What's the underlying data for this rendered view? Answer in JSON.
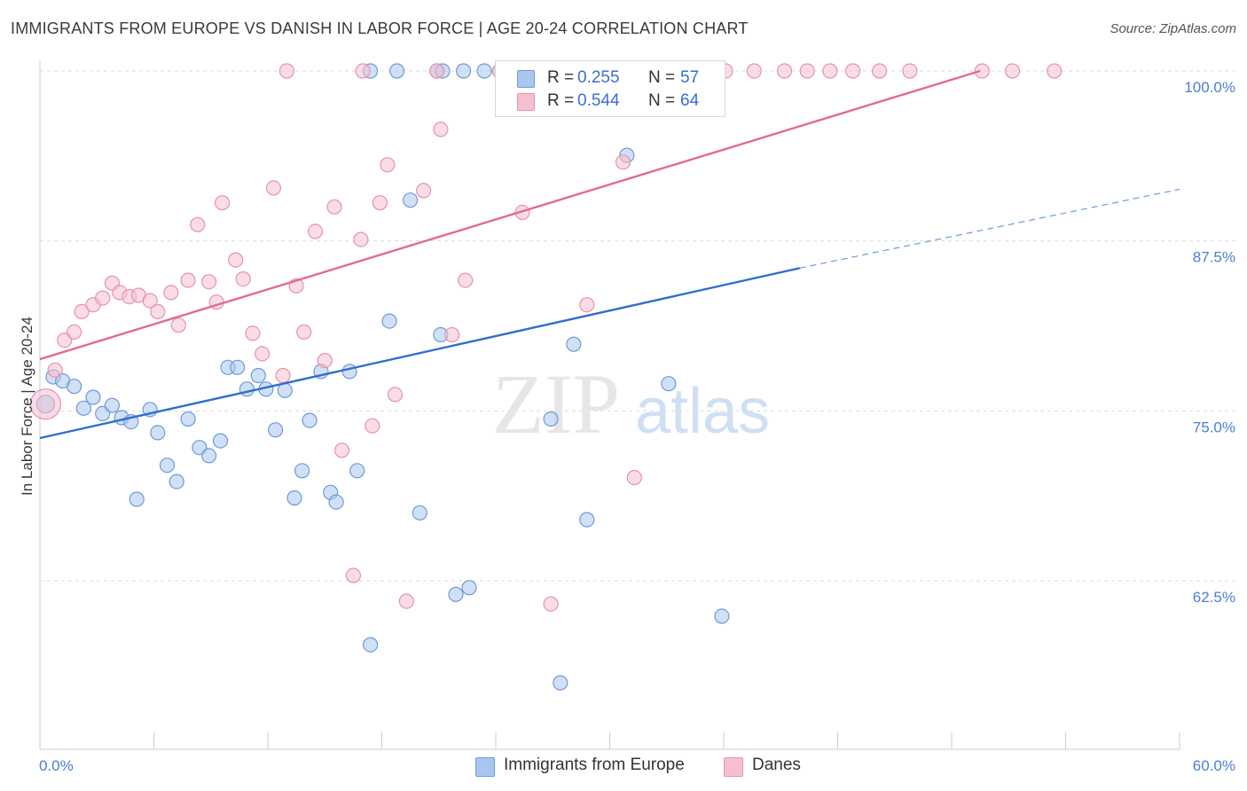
{
  "title": "IMMIGRANTS FROM EUROPE VS DANISH IN LABOR FORCE | AGE 20-24 CORRELATION CHART",
  "source": "Source: ZipAtlas.com",
  "watermark": {
    "zip": "ZIP",
    "atlas": "atlas"
  },
  "colors": {
    "blue_fill": "#a9c6ee",
    "blue_stroke": "#6f9ad6",
    "blue_line": "#2f6fcf",
    "pink_fill": "#f6bfd0",
    "pink_stroke": "#e792ae",
    "pink_line": "#e06b93",
    "tick_text": "#4a7fd6",
    "grid": "#dddddd"
  },
  "legend": {
    "rows": [
      {
        "r_label": "R =",
        "r_value": "0.255",
        "n_label": "N =",
        "n_value": "57",
        "color": "#a9c6ee"
      },
      {
        "r_label": "R =",
        "r_value": "0.544",
        "n_label": "N =",
        "n_value": "64",
        "color": "#f6bfd0"
      }
    ]
  },
  "chart_data": {
    "type": "scatter",
    "title": "IMMIGRANTS FROM EUROPE VS DANISH IN LABOR FORCE | AGE 20-24 CORRELATION CHART",
    "xlabel": "",
    "ylabel": "In Labor Force | Age 20-24",
    "xlim": [
      0,
      60
    ],
    "ylim": [
      50,
      100
    ],
    "x_tick_labels": [
      "0.0%",
      "60.0%"
    ],
    "y_tick_values": [
      62.5,
      75.0,
      87.5,
      100.0
    ],
    "y_tick_labels": [
      "62.5%",
      "75.0%",
      "87.5%",
      "100.0%"
    ],
    "grid": true,
    "legend_position": "top-center",
    "series": [
      {
        "name": "Immigrants from Europe",
        "color": "#a9c6ee",
        "trend": {
          "x0": 0,
          "y0": 73.0,
          "x1": 40,
          "y1": 85.5,
          "dash_to_x": 60,
          "dash_y": 91.3
        },
        "points": [
          [
            0.3,
            75.5
          ],
          [
            0.7,
            77.5
          ],
          [
            1.2,
            77.2
          ],
          [
            1.8,
            76.8
          ],
          [
            2.3,
            75.2
          ],
          [
            2.8,
            76.0
          ],
          [
            3.3,
            74.8
          ],
          [
            3.8,
            75.4
          ],
          [
            4.3,
            74.5
          ],
          [
            4.8,
            74.2
          ],
          [
            5.1,
            68.5
          ],
          [
            5.8,
            75.1
          ],
          [
            6.2,
            73.4
          ],
          [
            6.7,
            71.0
          ],
          [
            7.2,
            69.8
          ],
          [
            7.8,
            74.4
          ],
          [
            8.4,
            72.3
          ],
          [
            8.9,
            71.7
          ],
          [
            9.5,
            72.8
          ],
          [
            9.9,
            78.2
          ],
          [
            10.4,
            78.2
          ],
          [
            10.9,
            76.6
          ],
          [
            11.5,
            77.6
          ],
          [
            11.9,
            76.6
          ],
          [
            12.4,
            73.6
          ],
          [
            12.9,
            76.5
          ],
          [
            13.4,
            68.6
          ],
          [
            13.8,
            70.6
          ],
          [
            14.2,
            74.3
          ],
          [
            14.8,
            77.9
          ],
          [
            15.3,
            69.0
          ],
          [
            15.6,
            68.3
          ],
          [
            16.3,
            77.9
          ],
          [
            16.7,
            70.6
          ],
          [
            17.4,
            57.8
          ],
          [
            17.4,
            100.0
          ],
          [
            18.8,
            100.0
          ],
          [
            18.4,
            81.6
          ],
          [
            19.5,
            90.5
          ],
          [
            20.0,
            67.5
          ],
          [
            20.9,
            100.0
          ],
          [
            21.1,
            80.6
          ],
          [
            21.9,
            61.5
          ],
          [
            22.3,
            100.0
          ],
          [
            22.6,
            62.0
          ],
          [
            23.4,
            100.0
          ],
          [
            24.2,
            100.0
          ],
          [
            26.0,
            100.0
          ],
          [
            26.9,
            74.4
          ],
          [
            27.4,
            55.0
          ],
          [
            28.1,
            79.9
          ],
          [
            28.8,
            67.0
          ],
          [
            30.9,
            93.8
          ],
          [
            33.1,
            77.0
          ],
          [
            35.9,
            59.9
          ],
          [
            24.8,
            100.0
          ],
          [
            21.2,
            100.0
          ]
        ]
      },
      {
        "name": "Danes",
        "color": "#f6bfd0",
        "trend": {
          "x0": 0,
          "y0": 78.8,
          "x1": 49.5,
          "y1": 100.0
        },
        "points": [
          [
            0.3,
            75.5
          ],
          [
            0.8,
            78.0
          ],
          [
            1.3,
            80.2
          ],
          [
            1.8,
            80.8
          ],
          [
            2.2,
            82.3
          ],
          [
            2.8,
            82.8
          ],
          [
            3.3,
            83.3
          ],
          [
            3.8,
            84.4
          ],
          [
            4.2,
            83.7
          ],
          [
            4.7,
            83.4
          ],
          [
            5.2,
            83.5
          ],
          [
            5.8,
            83.1
          ],
          [
            6.2,
            82.3
          ],
          [
            6.9,
            83.7
          ],
          [
            7.3,
            81.3
          ],
          [
            7.8,
            84.6
          ],
          [
            8.3,
            88.7
          ],
          [
            8.9,
            84.5
          ],
          [
            9.3,
            83.0
          ],
          [
            9.6,
            90.3
          ],
          [
            10.3,
            86.1
          ],
          [
            10.7,
            84.7
          ],
          [
            11.2,
            80.7
          ],
          [
            11.7,
            79.2
          ],
          [
            12.3,
            91.4
          ],
          [
            12.8,
            77.6
          ],
          [
            13.5,
            84.2
          ],
          [
            13.9,
            80.8
          ],
          [
            14.5,
            88.2
          ],
          [
            15.0,
            78.7
          ],
          [
            15.5,
            90.0
          ],
          [
            15.9,
            72.1
          ],
          [
            16.5,
            62.9
          ],
          [
            16.9,
            87.6
          ],
          [
            17.5,
            73.9
          ],
          [
            17.9,
            90.3
          ],
          [
            18.3,
            93.1
          ],
          [
            18.7,
            76.2
          ],
          [
            19.3,
            61.0
          ],
          [
            20.2,
            91.2
          ],
          [
            20.9,
            100.0
          ],
          [
            21.1,
            95.7
          ],
          [
            21.7,
            80.6
          ],
          [
            22.4,
            84.6
          ],
          [
            24.2,
            100.0
          ],
          [
            25.4,
            89.6
          ],
          [
            26.9,
            60.8
          ],
          [
            28.6,
            100.0
          ],
          [
            28.8,
            82.8
          ],
          [
            30.7,
            93.3
          ],
          [
            31.3,
            70.1
          ],
          [
            36.1,
            100.0
          ],
          [
            37.6,
            100.0
          ],
          [
            39.2,
            100.0
          ],
          [
            40.4,
            100.0
          ],
          [
            41.6,
            100.0
          ],
          [
            42.8,
            100.0
          ],
          [
            44.2,
            100.0
          ],
          [
            45.8,
            100.0
          ],
          [
            49.6,
            100.0
          ],
          [
            51.2,
            100.0
          ],
          [
            53.4,
            100.0
          ],
          [
            17.0,
            100.0
          ],
          [
            13.0,
            100.0
          ]
        ]
      }
    ]
  }
}
